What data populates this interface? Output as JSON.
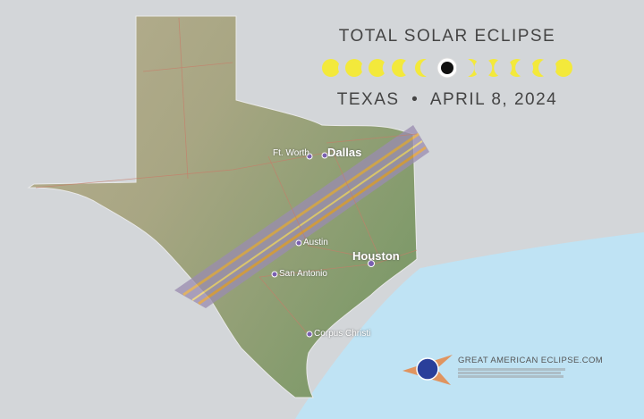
{
  "header": {
    "title": "TOTAL SOLAR ECLIPSE",
    "subtitle_state": "TEXAS",
    "subtitle_separator": "•",
    "subtitle_date": "APRIL 8, 2024"
  },
  "eclipse_phases": [
    "partial",
    "partial",
    "partial",
    "partial",
    "partial",
    "totality",
    "partial",
    "partial",
    "partial",
    "partial",
    "partial"
  ],
  "cities": [
    {
      "name": "Ft. Worth",
      "major": false
    },
    {
      "name": "Dallas",
      "major": true
    },
    {
      "name": "Austin",
      "major": false
    },
    {
      "name": "Houston",
      "major": true
    },
    {
      "name": "San Antonio",
      "major": false
    },
    {
      "name": "Corpus Christi",
      "major": false
    }
  ],
  "footer": {
    "website": "GREAT AMERICAN ECLIPSE.COM",
    "logo_text": "Great American Eclipse"
  },
  "colors": {
    "ocean": "#bfe3f4",
    "background": "#d3d6d9",
    "land": "#a9aa86",
    "path_of_totality": "#8d84a8",
    "sun": "#f3e93b"
  }
}
